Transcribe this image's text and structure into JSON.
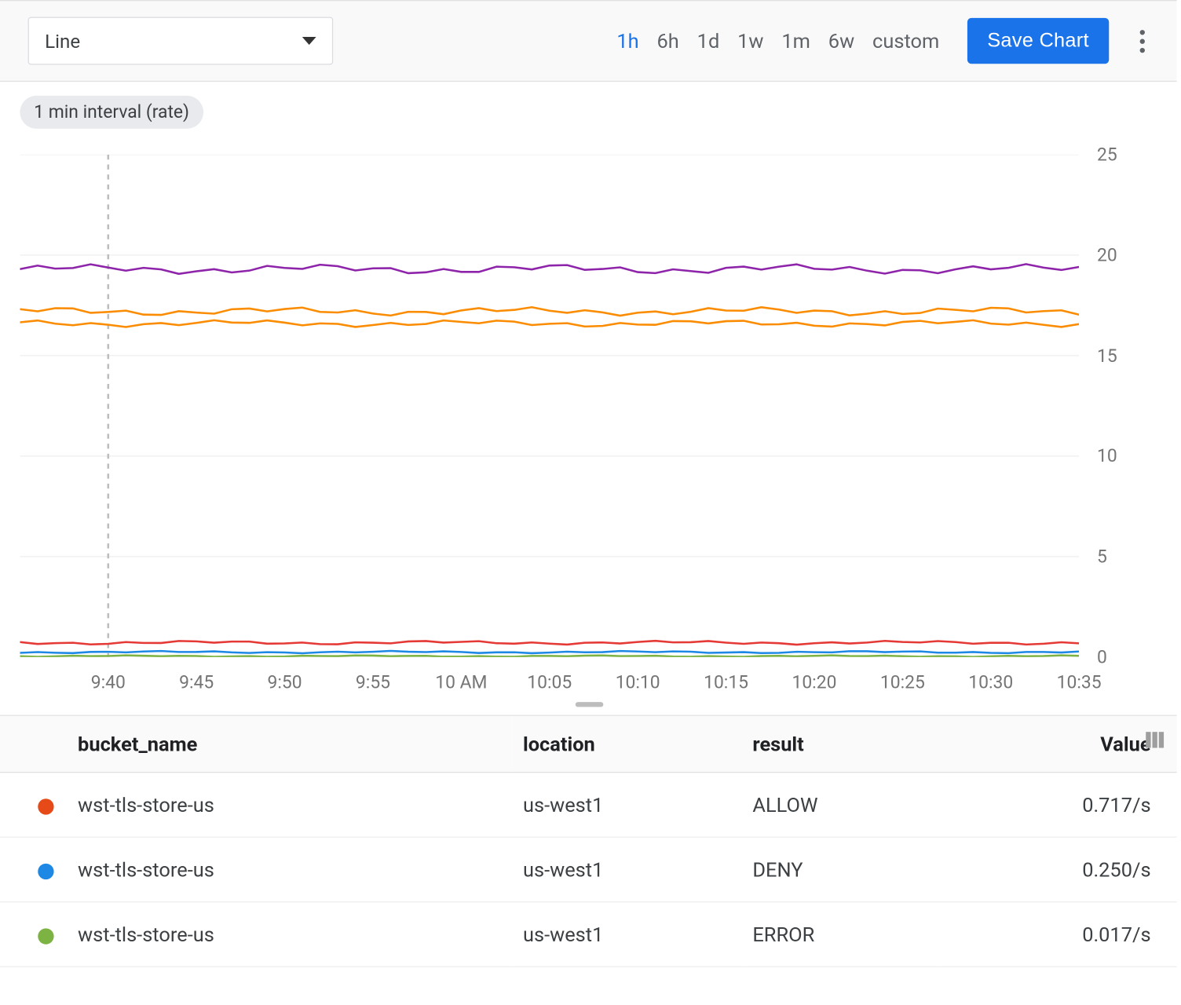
{
  "toolbar": {
    "chart_type": "Line",
    "ranges": [
      "1h",
      "6h",
      "1d",
      "1w",
      "1m",
      "6w",
      "custom"
    ],
    "active_range_index": 0,
    "save_label": "Save Chart"
  },
  "chart": {
    "interval_label": "1 min interval (rate)",
    "background_color": "#ffffff",
    "grid_color": "#eeeeee",
    "axis_label_color": "#757575",
    "axis_label_fontsize": 18,
    "y": {
      "min": 0,
      "max": 25,
      "ticks": [
        0,
        5,
        10,
        15,
        20,
        25
      ]
    },
    "x": {
      "start_min": 0,
      "end_min": 60,
      "ticks_min": [
        5,
        10,
        15,
        20,
        25,
        30,
        35,
        40,
        45,
        50,
        55,
        60
      ],
      "tick_labels": [
        "9:40",
        "9:45",
        "9:50",
        "9:55",
        "10 AM",
        "10:05",
        "10:10",
        "10:15",
        "10:20",
        "10:25",
        "10:30",
        "10:35"
      ]
    },
    "marker_x_min": 5,
    "marker_color": "#bdbdbd",
    "series": [
      {
        "color": "#8e24aa",
        "baseline": 19.3,
        "jitter": 0.25
      },
      {
        "color": "#fb8c00",
        "baseline": 17.2,
        "jitter": 0.22
      },
      {
        "color": "#fb8c00",
        "baseline": 16.6,
        "jitter": 0.18
      },
      {
        "color": "#e53935",
        "baseline": 0.72,
        "jitter": 0.1
      },
      {
        "color": "#1e88e5",
        "baseline": 0.25,
        "jitter": 0.06
      },
      {
        "color": "#7cb342",
        "baseline": 0.05,
        "jitter": 0.04
      }
    ]
  },
  "table": {
    "columns": [
      "bucket_name",
      "location",
      "result",
      "Value"
    ],
    "rows": [
      {
        "dot": "#e64a19",
        "bucket_name": "wst-tls-store-us",
        "location": "us-west1",
        "result": "ALLOW",
        "value": "0.717/s"
      },
      {
        "dot": "#1e88e5",
        "bucket_name": "wst-tls-store-us",
        "location": "us-west1",
        "result": "DENY",
        "value": "0.250/s"
      },
      {
        "dot": "#7cb342",
        "bucket_name": "wst-tls-store-us",
        "location": "us-west1",
        "result": "ERROR",
        "value": "0.017/s"
      }
    ]
  }
}
